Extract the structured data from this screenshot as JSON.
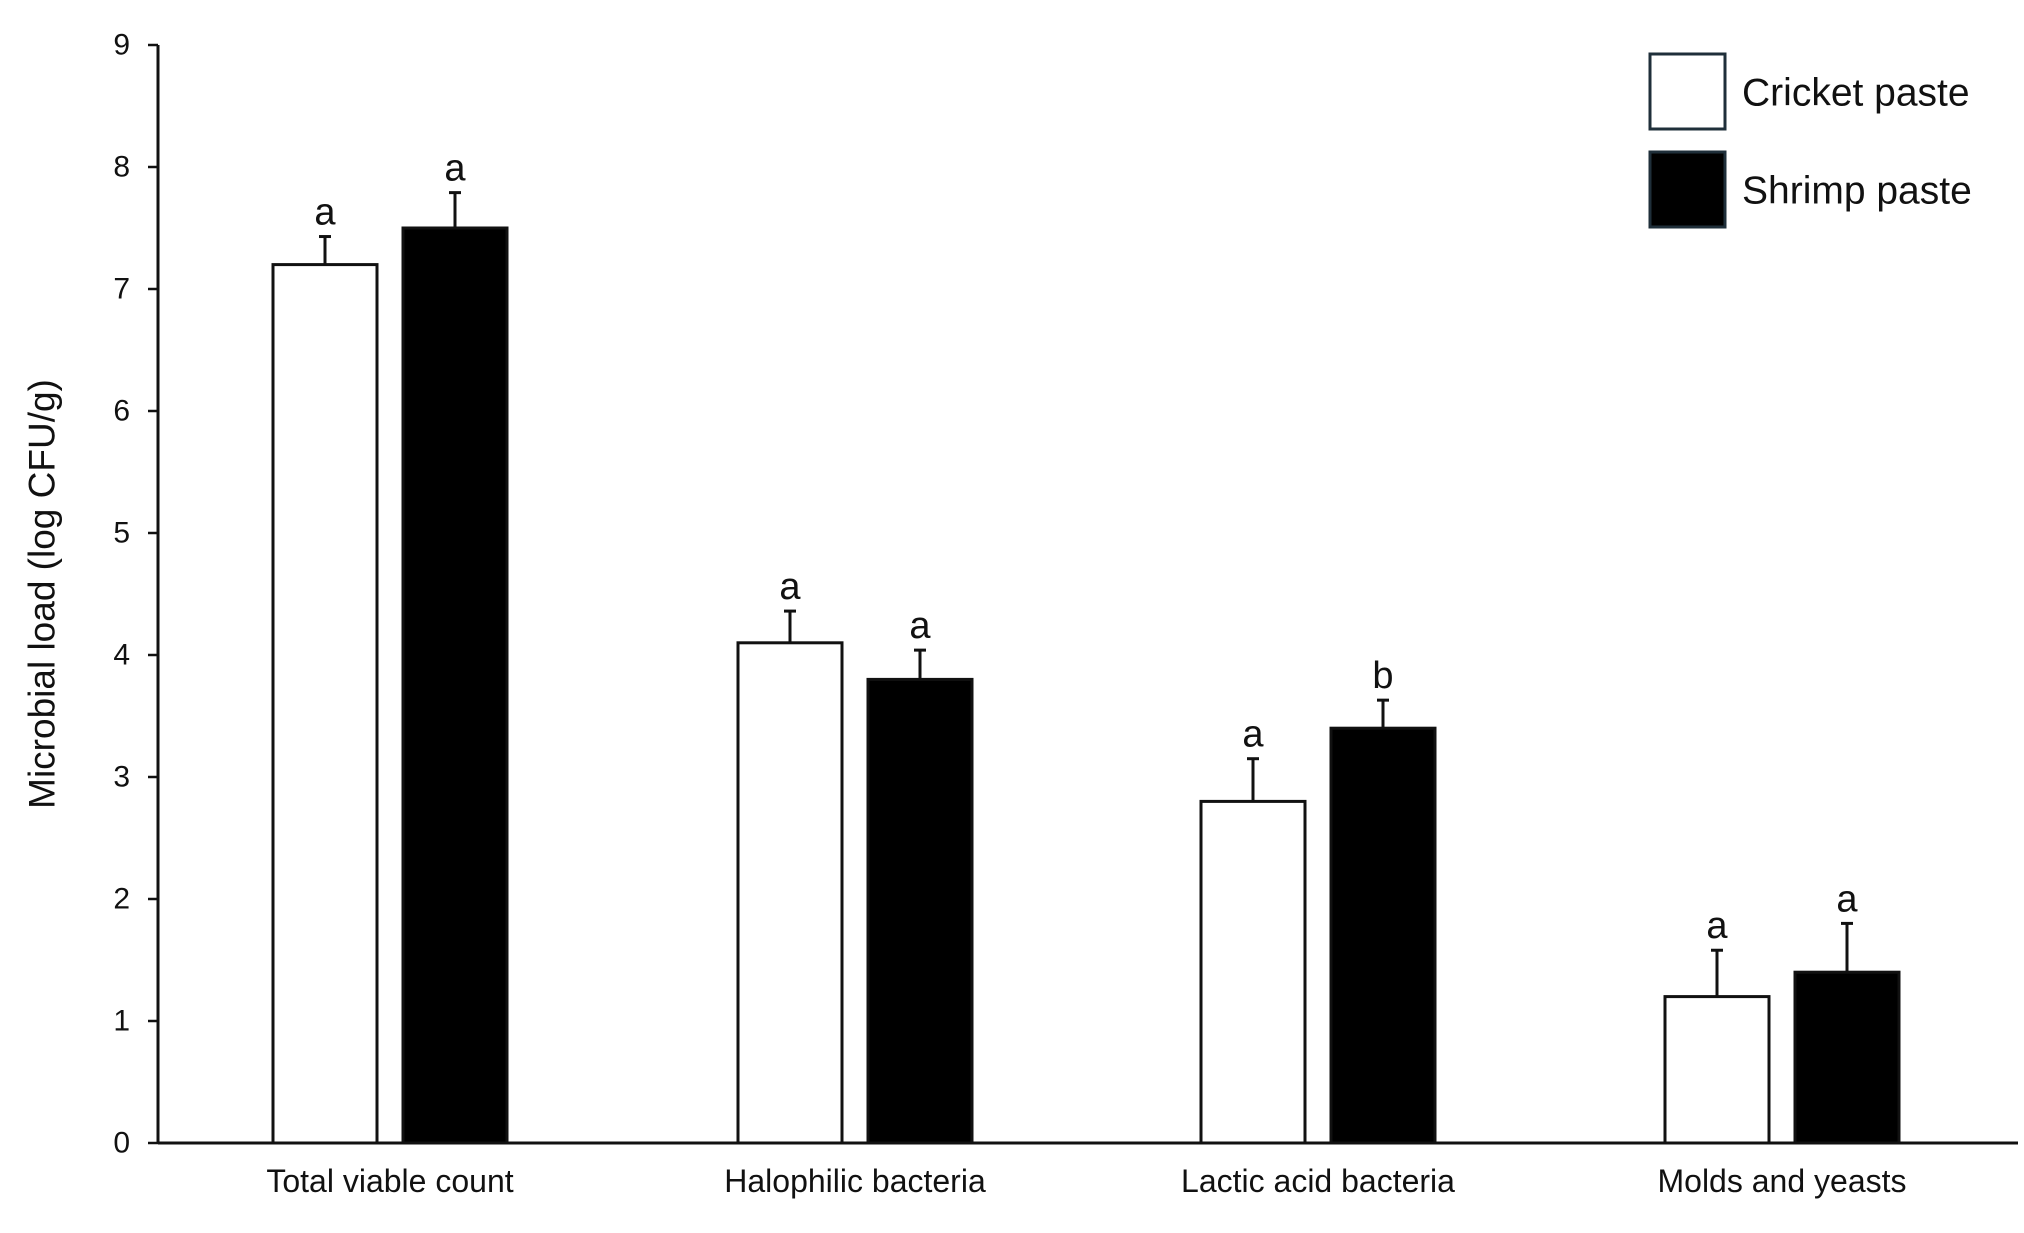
{
  "chart_data": {
    "type": "bar",
    "title": "",
    "xlabel": "",
    "ylabel": "Microbial load (log CFU/g)",
    "ylim": [
      0,
      9
    ],
    "yticks": [
      0,
      1,
      2,
      3,
      4,
      5,
      6,
      7,
      8,
      9
    ],
    "categories": [
      "Total viable count",
      "Halophilic bacteria",
      "Lactic acid bacteria",
      "Molds and yeasts"
    ],
    "series": [
      {
        "name": "Cricket paste",
        "fill": "#ffffff",
        "values": [
          7.2,
          4.1,
          2.8,
          1.2
        ],
        "errors": [
          0.23,
          0.26,
          0.35,
          0.38
        ],
        "significance": [
          "a",
          "a",
          "a",
          "a"
        ]
      },
      {
        "name": "Shrimp paste",
        "fill": "#000000",
        "values": [
          7.5,
          3.8,
          3.4,
          1.4
        ],
        "errors": [
          0.29,
          0.24,
          0.23,
          0.4
        ],
        "significance": [
          "a",
          "a",
          "b",
          "a"
        ]
      }
    ],
    "legend_position": "top-right",
    "grid": false,
    "error_bars": "upper"
  }
}
